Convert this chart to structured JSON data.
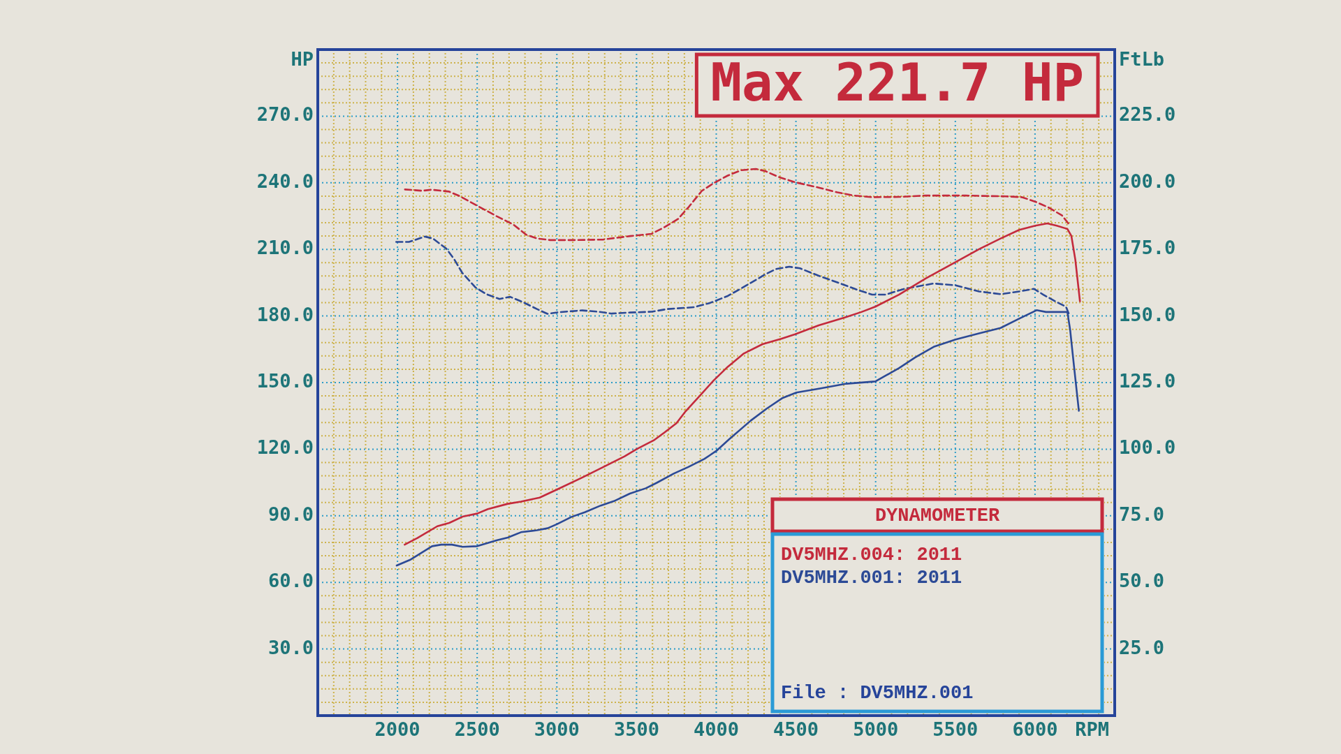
{
  "chart_data": {
    "type": "line",
    "title": "Max 221.7 HP",
    "xlabel": "RPM",
    "ylabel": "HP",
    "y2label": "FtLb",
    "legend_title": "DYNAMOMETER",
    "legend": "bottom right",
    "grid": true,
    "annotations": [
      "File : DV5MHZ.001"
    ],
    "xlim": [
      1500,
      6500
    ],
    "ylim": [
      0,
      300
    ],
    "y2lim": [
      0,
      250
    ],
    "xticks": [
      {
        "value": 1600,
        "label": null
      },
      {
        "value": 1700,
        "label": null
      },
      {
        "value": 1800,
        "label": null
      },
      {
        "value": 1900,
        "label": null
      },
      2000,
      {
        "value": 2100,
        "label": null
      },
      {
        "value": 2200,
        "label": null
      },
      {
        "value": 2300,
        "label": null
      },
      {
        "value": 2400,
        "label": null
      },
      2500,
      {
        "value": 2600,
        "label": null
      },
      {
        "value": 2700,
        "label": null
      },
      {
        "value": 2800,
        "label": null
      },
      {
        "value": 2900,
        "label": null
      },
      3000,
      {
        "value": 3100,
        "label": null
      },
      {
        "value": 3200,
        "label": null
      },
      {
        "value": 3300,
        "label": null
      },
      {
        "value": 3400,
        "label": null
      },
      3500,
      {
        "value": 3600,
        "label": null
      },
      {
        "value": 3700,
        "label": null
      },
      {
        "value": 3800,
        "label": null
      },
      {
        "value": 3900,
        "label": null
      },
      4000,
      {
        "value": 4100,
        "label": null
      },
      {
        "value": 4200,
        "label": null
      },
      {
        "value": 4300,
        "label": null
      },
      {
        "value": 4400,
        "label": null
      },
      4500,
      {
        "value": 4600,
        "label": null
      },
      {
        "value": 4700,
        "label": null
      },
      {
        "value": 4800,
        "label": null
      },
      {
        "value": 4900,
        "label": null
      },
      5000,
      {
        "value": 5100,
        "label": null
      },
      {
        "value": 5200,
        "label": null
      },
      {
        "value": 5300,
        "label": null
      },
      {
        "value": 5400,
        "label": null
      },
      5500,
      {
        "value": 5600,
        "label": null
      },
      {
        "value": 5700,
        "label": null
      },
      {
        "value": 5800,
        "label": null
      },
      {
        "value": 5900,
        "label": null
      },
      6000,
      {
        "value": 6100,
        "label": null
      },
      {
        "value": 6200,
        "label": null
      },
      {
        "value": 6300,
        "label": null
      },
      {
        "value": 6400,
        "label": null
      }
    ],
    "yticks": [
      {
        "value": 6,
        "label": null
      },
      {
        "value": 12,
        "label": null
      },
      {
        "value": 18,
        "label": null
      },
      {
        "value": 24,
        "label": null
      },
      {
        "value": 30,
        "label": "30.0"
      },
      {
        "value": 36,
        "label": null
      },
      {
        "value": 42,
        "label": null
      },
      {
        "value": 48,
        "label": null
      },
      {
        "value": 54,
        "label": null
      },
      {
        "value": 60,
        "label": "60.0"
      },
      {
        "value": 66,
        "label": null
      },
      {
        "value": 72,
        "label": null
      },
      {
        "value": 78,
        "label": null
      },
      {
        "value": 84,
        "label": null
      },
      {
        "value": 90,
        "label": "90.0"
      },
      {
        "value": 96,
        "label": null
      },
      {
        "value": 102,
        "label": null
      },
      {
        "value": 108,
        "label": null
      },
      {
        "value": 114,
        "label": null
      },
      {
        "value": 120,
        "label": "120.0"
      },
      {
        "value": 126,
        "label": null
      },
      {
        "value": 132,
        "label": null
      },
      {
        "value": 138,
        "label": null
      },
      {
        "value": 144,
        "label": null
      },
      {
        "value": 150,
        "label": "150.0"
      },
      {
        "value": 156,
        "label": null
      },
      {
        "value": 162,
        "label": null
      },
      {
        "value": 168,
        "label": null
      },
      {
        "value": 174,
        "label": null
      },
      {
        "value": 180,
        "label": "180.0"
      },
      {
        "value": 186,
        "label": null
      },
      {
        "value": 192,
        "label": null
      },
      {
        "value": 198,
        "label": null
      },
      {
        "value": 204,
        "label": null
      },
      {
        "value": 210,
        "label": "210.0"
      },
      {
        "value": 216,
        "label": null
      },
      {
        "value": 222,
        "label": null
      },
      {
        "value": 228,
        "label": null
      },
      {
        "value": 234,
        "label": null
      },
      {
        "value": 240,
        "label": "240.0"
      },
      {
        "value": 246,
        "label": null
      },
      {
        "value": 252,
        "label": null
      },
      {
        "value": 258,
        "label": null
      },
      {
        "value": 264,
        "label": null
      },
      {
        "value": 270,
        "label": "270.0"
      },
      {
        "value": 276,
        "label": null
      },
      {
        "value": 282,
        "label": null
      },
      {
        "value": 288,
        "label": null
      },
      {
        "value": 294,
        "label": null
      }
    ],
    "y2ticks": [
      {
        "value": 25,
        "label": "25.0"
      },
      {
        "value": 50,
        "label": "50.0"
      },
      {
        "value": 75,
        "label": "75.0"
      },
      {
        "value": 100,
        "label": "100.0"
      },
      {
        "value": 125,
        "label": "125.0"
      },
      {
        "value": 150,
        "label": "150.0"
      },
      {
        "value": 175,
        "label": "175.0"
      },
      {
        "value": 200,
        "label": "200.0"
      },
      {
        "value": 225,
        "label": "225.0"
      }
    ],
    "series": [
      {
        "name": "DV5MHZ.004: 2011",
        "color": "#c42a3c",
        "line_style": "solid",
        "x": [
          2045,
          2125,
          2250,
          2325,
          2408,
          2500,
          2567,
          2692,
          2775,
          2892,
          3000,
          3158,
          3292,
          3425,
          3500,
          3608,
          3675,
          3750,
          3808,
          3900,
          3983,
          4072,
          4173,
          4290,
          4408,
          4495,
          4643,
          4810,
          4911,
          4998,
          5146,
          5314,
          5502,
          5649,
          5784,
          5901,
          6002,
          6077,
          6136,
          6203,
          6228,
          6253,
          6282
        ],
        "values": [
          77.0,
          80.0,
          85.3,
          86.8,
          89.6,
          91.0,
          93.0,
          95.4,
          96.4,
          98.2,
          101.8,
          107.2,
          112.0,
          116.8,
          120.0,
          124.0,
          127.5,
          131.7,
          137.1,
          144.3,
          150.9,
          157.1,
          163.1,
          167.3,
          169.7,
          171.8,
          175.8,
          179.4,
          181.8,
          184.2,
          189.6,
          196.9,
          204.3,
          210.1,
          214.9,
          218.8,
          220.7,
          221.7,
          220.7,
          219.2,
          216.1,
          205.3,
          186.6
        ]
      },
      {
        "name": "DV5MHZ.001: 2011",
        "color": "#2c4a96",
        "line_style": "solid",
        "x": [
          1995,
          2083,
          2217,
          2275,
          2342,
          2408,
          2500,
          2625,
          2692,
          2775,
          2875,
          2942,
          3000,
          3092,
          3175,
          3275,
          3358,
          3458,
          3558,
          3625,
          3733,
          3825,
          3925,
          4000,
          4083,
          4217,
          4317,
          4417,
          4503,
          4650,
          4817,
          4998,
          5146,
          5247,
          5364,
          5502,
          5649,
          5784,
          5901,
          6010,
          6069,
          6203,
          6220,
          6245,
          6275
        ],
        "values": [
          67.6,
          70.3,
          76.3,
          77.0,
          77.0,
          76.0,
          76.3,
          79.0,
          80.2,
          82.6,
          83.5,
          84.4,
          86.2,
          89.5,
          91.6,
          94.6,
          96.6,
          100.0,
          102.4,
          104.8,
          109.0,
          112.0,
          115.6,
          119.2,
          124.6,
          132.9,
          138.3,
          143.1,
          145.5,
          147.3,
          149.5,
          150.5,
          156.5,
          161.3,
          166.1,
          169.4,
          172.2,
          174.6,
          178.8,
          182.6,
          181.8,
          181.8,
          174.0,
          157.1,
          137.3
        ]
      },
      {
        "color": "#c42a3c",
        "axis": "y2",
        "line_style": "dashed",
        "x": [
          2047,
          2155,
          2214,
          2323,
          2390,
          2500,
          2624,
          2725,
          2808,
          2875,
          2958,
          3125,
          3292,
          3460,
          3593,
          3677,
          3760,
          3827,
          3910,
          3988,
          4072,
          4156,
          4248,
          4307,
          4391,
          4495,
          4643,
          4760,
          4861,
          4978,
          5146,
          5314,
          5566,
          5817,
          5918,
          6002,
          6086,
          6170,
          6220
        ],
        "values": [
          197.5,
          197.0,
          197.4,
          196.7,
          195.0,
          191.4,
          187.4,
          184.4,
          180.5,
          179.1,
          178.5,
          178.5,
          178.7,
          180.0,
          180.8,
          183.4,
          186.4,
          190.9,
          197.0,
          200.0,
          202.7,
          204.7,
          205.2,
          204.4,
          202.2,
          200.2,
          198.2,
          196.4,
          195.2,
          194.6,
          194.7,
          195.2,
          195.2,
          194.9,
          194.6,
          192.9,
          190.7,
          187.7,
          183.9
        ]
      },
      {
        "color": "#2c4a96",
        "axis": "y2",
        "line_style": "dashed",
        "x": [
          1992,
          2072,
          2172,
          2222,
          2306,
          2356,
          2406,
          2490,
          2557,
          2640,
          2707,
          2791,
          2875,
          2941,
          3008,
          3159,
          3259,
          3343,
          3460,
          3594,
          3694,
          3861,
          3961,
          4072,
          4190,
          4307,
          4374,
          4458,
          4525,
          4643,
          4760,
          4878,
          4978,
          5062,
          5180,
          5364,
          5502,
          5649,
          5784,
          5901,
          5993,
          6052,
          6136,
          6194,
          6211
        ],
        "values": [
          177.8,
          177.8,
          179.8,
          179.1,
          175.3,
          171.3,
          166.2,
          160.7,
          158.2,
          156.4,
          157.2,
          155.1,
          152.6,
          150.8,
          151.4,
          152.1,
          151.6,
          150.9,
          151.3,
          151.6,
          152.6,
          153.3,
          154.9,
          157.5,
          161.5,
          165.6,
          167.6,
          168.5,
          167.9,
          165.1,
          162.6,
          160.0,
          158.0,
          158.0,
          160.2,
          162.2,
          161.5,
          159.2,
          158.2,
          159.2,
          160.2,
          158.0,
          155.2,
          153.5,
          151.0
        ]
      }
    ]
  }
}
